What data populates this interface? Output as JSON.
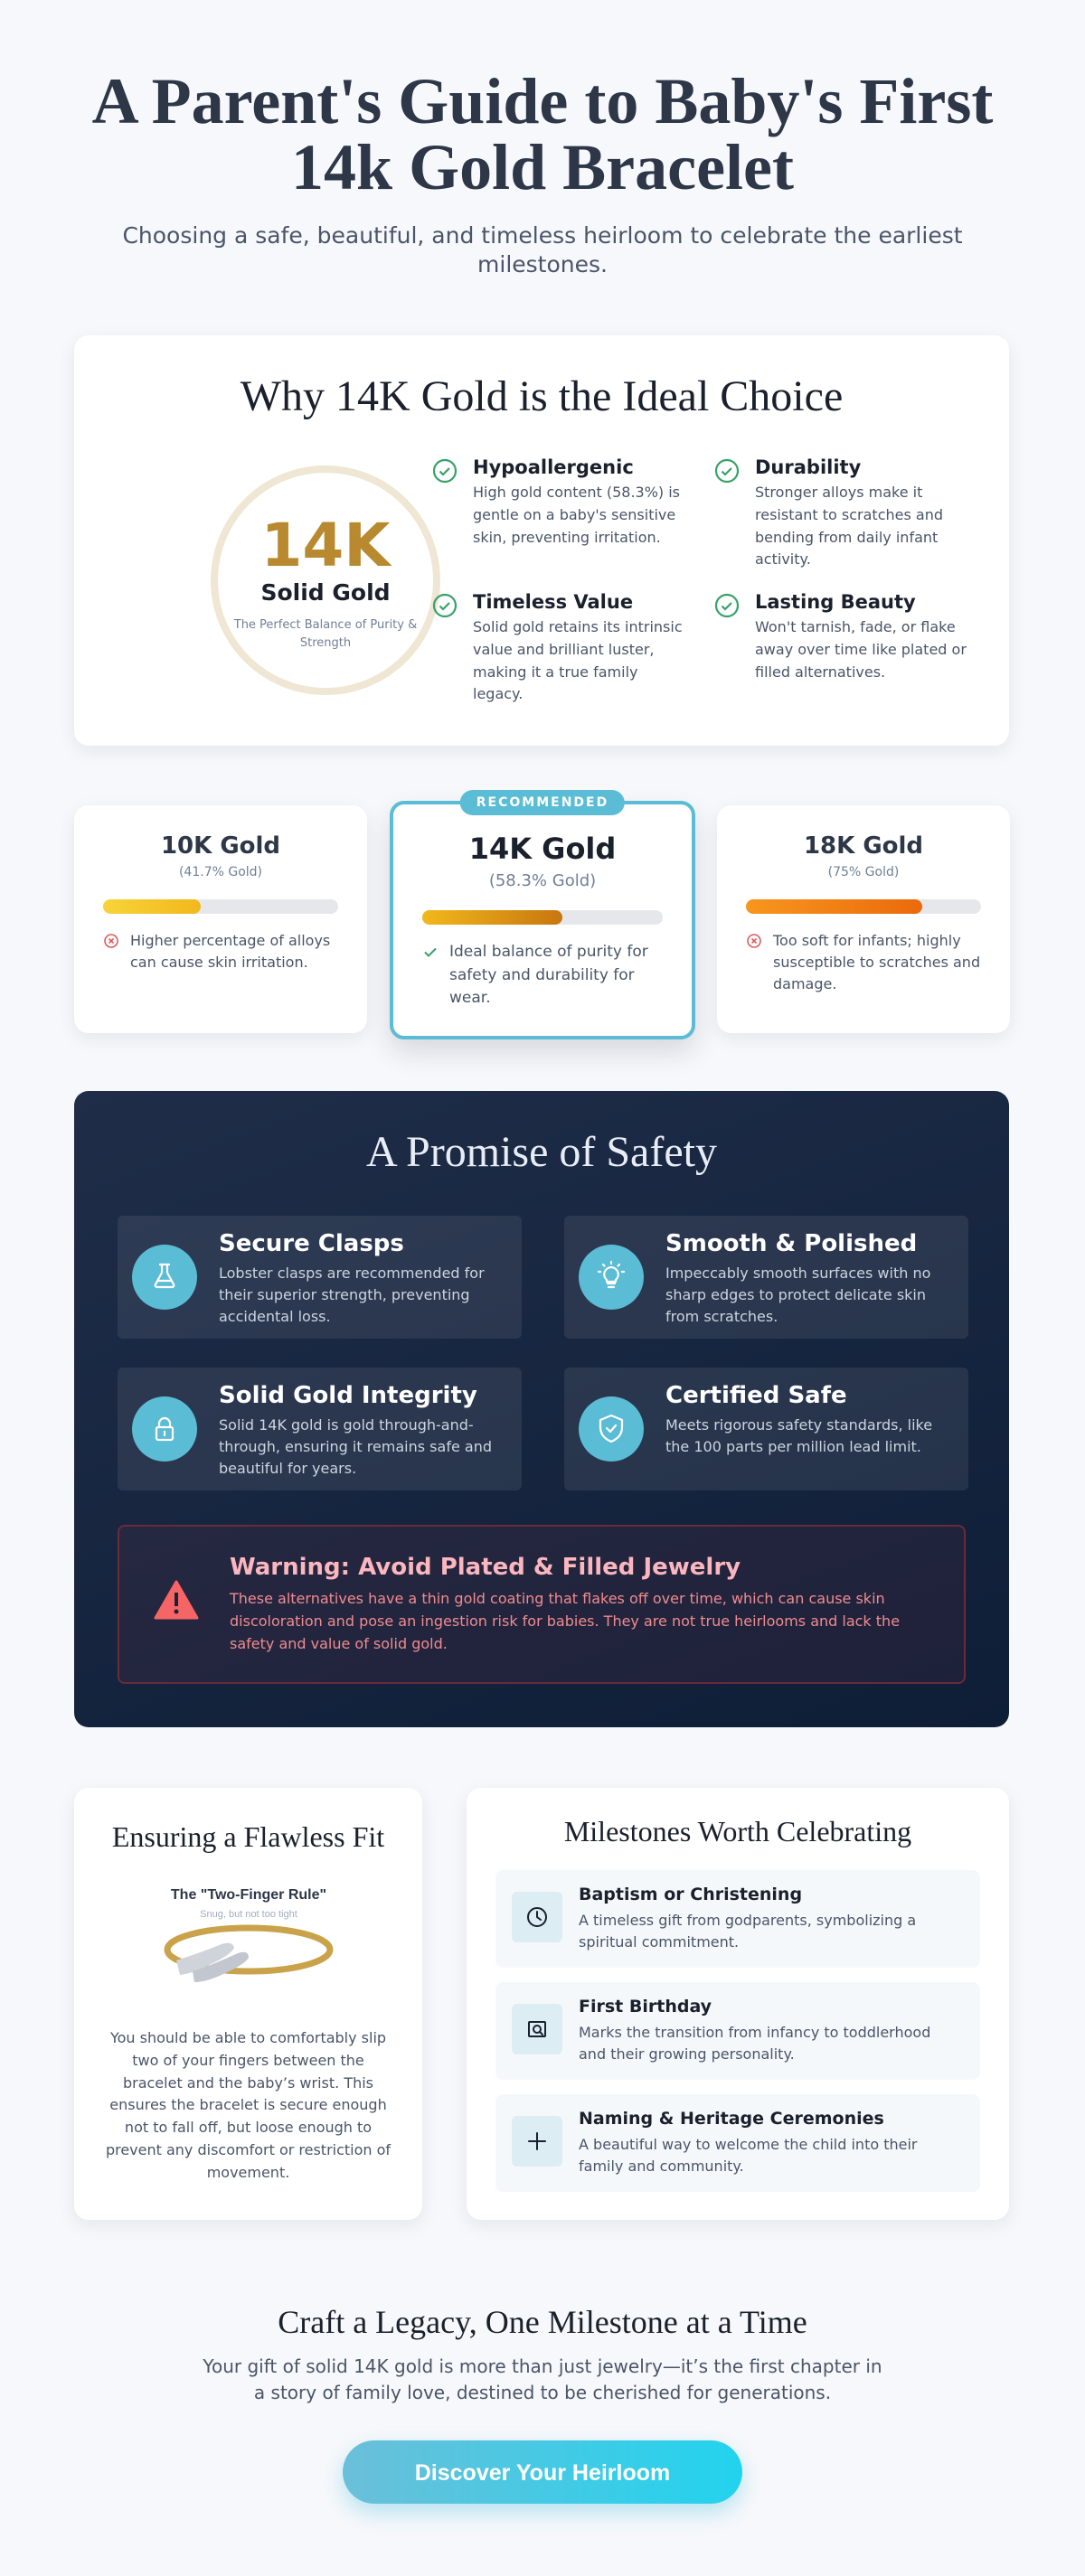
{
  "header": {
    "title": "A Parent's Guide to Baby's First 14k Gold Bracelet",
    "subtitle": "Choosing a safe, beautiful, and timeless heirloom to celebrate the earliest milestones."
  },
  "why": {
    "title": "Why 14K Gold is the Ideal Choice",
    "badge": {
      "big": "14K",
      "label": "Solid Gold",
      "caption": "The Perfect Balance of Purity & Strength"
    },
    "features": [
      {
        "title": "Hypoallergenic",
        "text": "High gold content (58.3%) is gentle on a baby's sensitive skin, preventing irritation."
      },
      {
        "title": "Durability",
        "text": "Stronger alloys make it resistant to scratches and bending from daily infant activity."
      },
      {
        "title": "Timeless Value",
        "text": "Solid gold retains its intrinsic value and brilliant luster, making it a true family legacy."
      },
      {
        "title": "Lasting Beauty",
        "text": "Won't tarnish, fade, or flake away over time like plated or filled alternatives."
      }
    ]
  },
  "comparison": {
    "recommended": "RECOMMENDED",
    "cards": [
      {
        "name": "10K Gold",
        "purity_label": "(41.7% Gold)",
        "purity": 41.7,
        "note": "Higher percentage of alloys can cause skin irritation."
      },
      {
        "name": "14K Gold",
        "purity_label": "(58.3% Gold)",
        "purity": 58.3,
        "note": "Ideal balance of purity for safety and durability for wear."
      },
      {
        "name": "18K Gold",
        "purity_label": "(75% Gold)",
        "purity": 75,
        "note": "Too soft for infants; highly susceptible to scratches and damage."
      }
    ]
  },
  "safety": {
    "title": "A Promise of Safety",
    "items": [
      {
        "title": "Secure Clasps",
        "text": "Lobster clasps are recommended for their superior strength, preventing accidental loss."
      },
      {
        "title": "Smooth & Polished",
        "text": "Impeccably smooth surfaces with no sharp edges to protect delicate skin from scratches."
      },
      {
        "title": "Solid Gold Integrity",
        "text": "Solid 14K gold is gold through-and-through, ensuring it remains safe and beautiful for years."
      },
      {
        "title": "Certified Safe",
        "text": "Meets rigorous safety standards, like the 100 parts per million lead limit."
      }
    ],
    "warning": {
      "title": "Warning: Avoid Plated & Filled Jewelry",
      "text": "These alternatives have a thin gold coating that flakes off over time, which can cause skin discoloration and pose an ingestion risk for babies. They are not true heirlooms and lack the safety and value of solid gold."
    }
  },
  "fit": {
    "title": "Ensuring a Flawless Fit",
    "diagram_title": "The \"Two-Finger Rule\"",
    "diagram_caption": "Snug, but not too tight",
    "text": "You should be able to comfortably slip two of your fingers between the bracelet and the baby’s wrist. This ensures the bracelet is secure enough not to fall off, but loose enough to prevent any discomfort or restriction of movement."
  },
  "milestones": {
    "title": "Milestones Worth Celebrating",
    "items": [
      {
        "title": "Baptism or Christening",
        "text": "A timeless gift from godparents, symbolizing a spiritual commitment."
      },
      {
        "title": "First Birthday",
        "text": "Marks the transition from infancy to toddlerhood and their growing personality."
      },
      {
        "title": "Naming & Heritage Ceremonies",
        "text": "A beautiful way to welcome the child into their family and community."
      }
    ]
  },
  "footer": {
    "title": "Craft a Legacy, One Milestone at a Time",
    "text": "Your gift of solid 14K gold is more than just jewelry—it’s the first chapter in a story of family love, destined to be cherished for generations.",
    "button": "Discover Your Heirloom"
  }
}
